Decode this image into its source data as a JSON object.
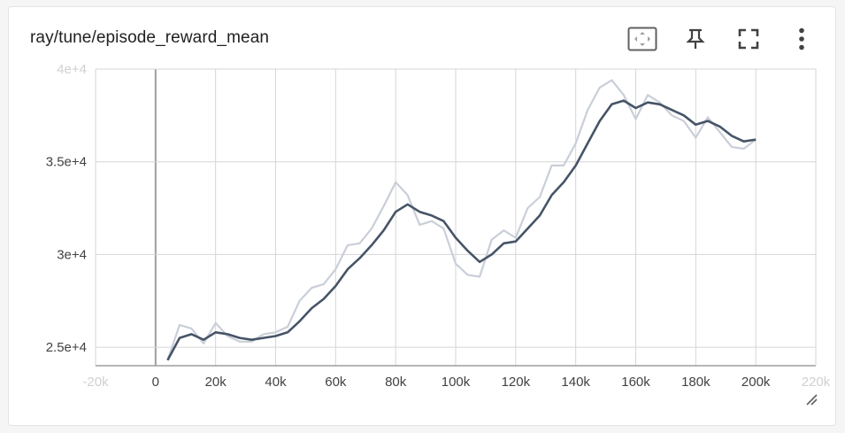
{
  "card": {
    "title": "ray/tune/episode_reward_mean",
    "toolbar": [
      {
        "name": "fit-domain-button",
        "icon": "fit-to-data-icon"
      },
      {
        "name": "pin-button",
        "icon": "pin-icon"
      },
      {
        "name": "fullscreen-button",
        "icon": "fullscreen-icon"
      },
      {
        "name": "more-options-button",
        "icon": "more-vert-icon"
      }
    ]
  },
  "colors": {
    "smoothed": "#465467",
    "raw": "#c9ced8",
    "grid": "#d6d6d6",
    "zero_axis": "#9e9e9e",
    "tick_text": "#424242",
    "faded_tick_text": "#d0d0d0"
  },
  "chart_data": {
    "type": "line",
    "title": "ray/tune/episode_reward_mean",
    "xlabel": "",
    "ylabel": "",
    "xlim": [
      -20000,
      220000
    ],
    "ylim": [
      24000,
      40000
    ],
    "x_ticks": [
      {
        "value": -20000,
        "label": "-20k",
        "faded": true
      },
      {
        "value": 0,
        "label": "0",
        "faded": false
      },
      {
        "value": 20000,
        "label": "20k",
        "faded": false
      },
      {
        "value": 40000,
        "label": "40k",
        "faded": false
      },
      {
        "value": 60000,
        "label": "60k",
        "faded": false
      },
      {
        "value": 80000,
        "label": "80k",
        "faded": false
      },
      {
        "value": 100000,
        "label": "100k",
        "faded": false
      },
      {
        "value": 120000,
        "label": "120k",
        "faded": false
      },
      {
        "value": 140000,
        "label": "140k",
        "faded": false
      },
      {
        "value": 160000,
        "label": "160k",
        "faded": false
      },
      {
        "value": 180000,
        "label": "180k",
        "faded": false
      },
      {
        "value": 200000,
        "label": "200k",
        "faded": false
      },
      {
        "value": 220000,
        "label": "220k",
        "faded": true
      }
    ],
    "y_ticks": [
      {
        "value": 25000,
        "label": "2.5e+4",
        "faded": false
      },
      {
        "value": 30000,
        "label": "3e+4",
        "faded": false
      },
      {
        "value": 35000,
        "label": "3.5e+4",
        "faded": false
      },
      {
        "value": 40000,
        "label": "4e+4",
        "faded": true
      }
    ],
    "grid": true,
    "series": [
      {
        "key": "raw",
        "x": [
          4000,
          8000,
          12000,
          16000,
          20000,
          24000,
          28000,
          32000,
          36000,
          40000,
          44000,
          48000,
          52000,
          56000,
          60000,
          64000,
          68000,
          72000,
          76000,
          80000,
          84000,
          88000,
          92000,
          96000,
          100000,
          104000,
          108000,
          112000,
          116000,
          120000,
          124000,
          128000,
          132000,
          136000,
          140000,
          144000,
          148000,
          152000,
          156000,
          160000,
          164000,
          168000,
          172000,
          176000,
          180000,
          184000,
          188000,
          192000,
          196000,
          200000
        ],
        "values": [
          24300,
          26200,
          26000,
          25200,
          26300,
          25600,
          25300,
          25300,
          25700,
          25800,
          26100,
          27500,
          28200,
          28400,
          29200,
          30500,
          30600,
          31400,
          32600,
          33900,
          33200,
          31600,
          31800,
          31400,
          29500,
          28900,
          28800,
          30800,
          31300,
          30900,
          32500,
          33100,
          34800,
          34800,
          36000,
          37800,
          39000,
          39400,
          38600,
          37300,
          38600,
          38200,
          37500,
          37200,
          36300,
          37400,
          36600,
          35800,
          35700,
          36200
        ]
      },
      {
        "key": "smoothed",
        "x": [
          4000,
          8000,
          12000,
          16000,
          20000,
          24000,
          28000,
          32000,
          36000,
          40000,
          44000,
          48000,
          52000,
          56000,
          60000,
          64000,
          68000,
          72000,
          76000,
          80000,
          84000,
          88000,
          92000,
          96000,
          100000,
          104000,
          108000,
          112000,
          116000,
          120000,
          124000,
          128000,
          132000,
          136000,
          140000,
          144000,
          148000,
          152000,
          156000,
          160000,
          164000,
          168000,
          172000,
          176000,
          180000,
          184000,
          188000,
          192000,
          196000,
          200000
        ],
        "values": [
          24300,
          25500,
          25700,
          25400,
          25800,
          25700,
          25500,
          25400,
          25500,
          25600,
          25800,
          26400,
          27100,
          27600,
          28300,
          29200,
          29800,
          30500,
          31300,
          32300,
          32700,
          32300,
          32100,
          31800,
          30900,
          30200,
          29600,
          30000,
          30600,
          30700,
          31400,
          32100,
          33200,
          33900,
          34800,
          36000,
          37200,
          38100,
          38300,
          37900,
          38200,
          38100,
          37800,
          37500,
          37000,
          37200,
          36900,
          36400,
          36100,
          36200
        ]
      }
    ]
  }
}
